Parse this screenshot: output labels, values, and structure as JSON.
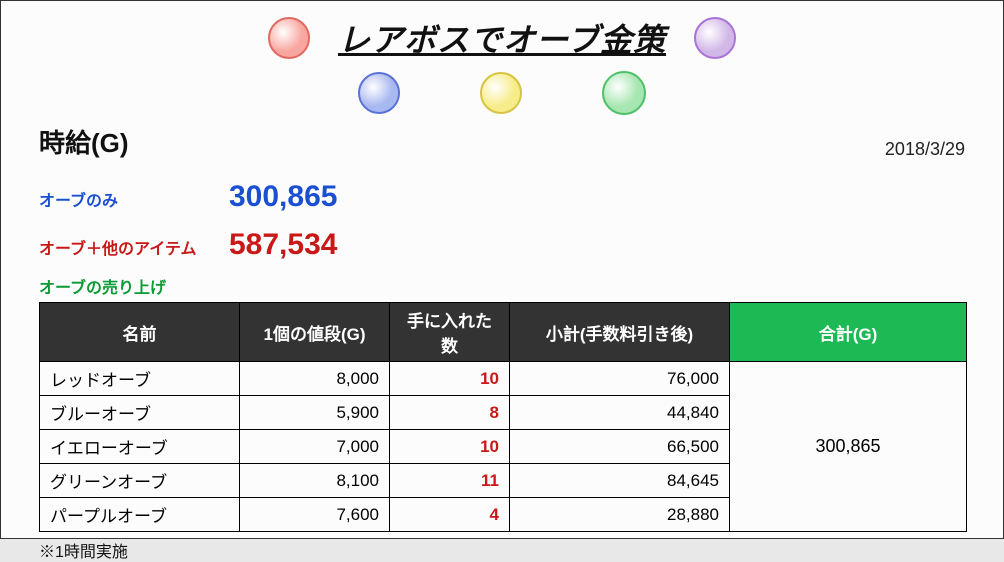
{
  "title": "レアボスでオーブ金策",
  "date": "2018/3/29",
  "hourly_label": "時給(G)",
  "orbs": {
    "title_left": {
      "fill": "#f8a7a0",
      "stroke": "#e06a62",
      "size": 42
    },
    "title_right": {
      "fill": "#d2b8e8",
      "stroke": "#a974d6",
      "size": 42
    },
    "row2": [
      {
        "fill": "#a8b8f0",
        "stroke": "#5b72d6",
        "size": 42
      },
      {
        "fill": "#f7ec8a",
        "stroke": "#d8c340",
        "size": 42
      },
      {
        "fill": "#a6e6b0",
        "stroke": "#4fbf6a",
        "size": 44
      }
    ]
  },
  "stats": {
    "orb_only": {
      "label": "オーブのみ",
      "value": "300,865",
      "color": "#1b4fd1"
    },
    "orb_plus": {
      "label": "オーブ＋他のアイテム",
      "value": "587,534",
      "color": "#c81818"
    }
  },
  "sales_label": "オーブの売り上げ",
  "sales_label_color": "#0a9a36",
  "table": {
    "header_bg_dark": "#333333",
    "header_bg_green": "#1db954",
    "count_color": "#c81818",
    "columns": [
      "名前",
      "1個の値段(G)",
      "手に入れた数",
      "小計(手数料引き後)",
      "合計(G)"
    ],
    "rows": [
      {
        "name": "レッドオーブ",
        "price": "8,000",
        "count": "10",
        "subtotal": "76,000"
      },
      {
        "name": "ブルーオーブ",
        "price": "5,900",
        "count": "8",
        "subtotal": "44,840"
      },
      {
        "name": "イエローオーブ",
        "price": "7,000",
        "count": "10",
        "subtotal": "66,500"
      },
      {
        "name": "グリーンオーブ",
        "price": "8,100",
        "count": "11",
        "subtotal": "84,645"
      },
      {
        "name": "パープルオーブ",
        "price": "7,600",
        "count": "4",
        "subtotal": "28,880"
      }
    ],
    "total": "300,865"
  },
  "note": "※1時間実施"
}
